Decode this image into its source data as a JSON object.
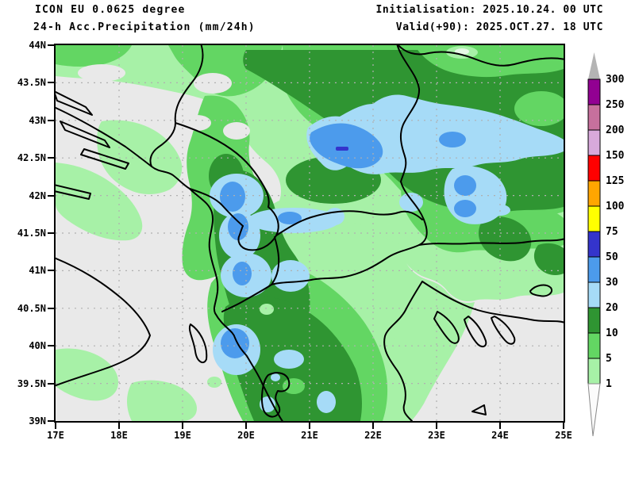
{
  "header": {
    "model": "ICON EU 0.0625 degree",
    "product": "24-h Acc.Precipitation (mm/24h)",
    "initialisation": "Initialisation: 2025.10.24. 00 UTC",
    "valid": "Valid(+90): 2025.OCT.27. 18 UTC"
  },
  "axes": {
    "lat_ticks": [
      "44N",
      "43.5N",
      "43N",
      "42.5N",
      "42N",
      "41.5N",
      "41N",
      "40.5N",
      "40N",
      "39.5N",
      "39N"
    ],
    "lon_ticks": [
      "17E",
      "18E",
      "19E",
      "20E",
      "21E",
      "22E",
      "23E",
      "24E",
      "25E"
    ]
  },
  "legend": {
    "thresholds": [
      "300",
      "250",
      "200",
      "150",
      "125",
      "100",
      "75",
      "50",
      "30",
      "20",
      "10",
      "5",
      "1"
    ],
    "band_colors_top_to_bottom": [
      "#920092",
      "#C7709D",
      "#D8A9DB",
      "#FF0000",
      "#FFA600",
      "#FFFF00",
      "#3434CC",
      "#4C9BEC",
      "#A6DBF7",
      "#2F9532",
      "#63D663",
      "#A7F1A7"
    ],
    "over_max_color": "#B4B4B4",
    "under_min_color": "#FBFBFB"
  },
  "map_colors": {
    "dry": "#E9E9E9",
    "light_green_1_5": "#A7F1A7",
    "green_5_10": "#63D663",
    "dark_green_10_20": "#2F9532",
    "light_blue_20_30": "#A6DBF7",
    "blue_30_50": "#4C9BEC",
    "indigo_50_75": "#3434CC",
    "border": "#000000",
    "grid": "#B0B0B0"
  }
}
